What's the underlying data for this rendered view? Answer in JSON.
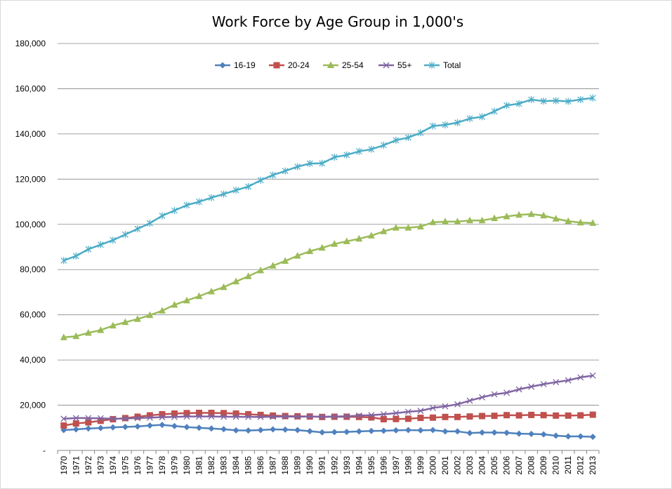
{
  "chart_data": {
    "type": "line",
    "title": "Work Force by Age Group in 1,000's",
    "xlabel": "",
    "ylabel": "",
    "ylim": [
      0,
      180000
    ],
    "y_ticks": [
      0,
      20000,
      40000,
      60000,
      80000,
      100000,
      120000,
      140000,
      160000,
      180000
    ],
    "y_tick_labels": [
      "-",
      "20,000",
      "40,000",
      "60,000",
      "80,000",
      "100,000",
      "120,000",
      "140,000",
      "160,000",
      "180,000"
    ],
    "grid": true,
    "legend_position": "top",
    "categories": [
      "1970",
      "1971",
      "1972",
      "1973",
      "1974",
      "1975",
      "1976",
      "1977",
      "1978",
      "1979",
      "1980",
      "1981",
      "1982",
      "1983",
      "1984",
      "1985",
      "1986",
      "1987",
      "1988",
      "1989",
      "1990",
      "1991",
      "1992",
      "1993",
      "1994",
      "1995",
      "1996",
      "1997",
      "1998",
      "1999",
      "2000",
      "2001",
      "2002",
      "2003",
      "2004",
      "2005",
      "2006",
      "2007",
      "2008",
      "2009",
      "2010",
      "2011",
      "2012",
      "2013"
    ],
    "series": [
      {
        "name": "16-19",
        "color": "#4f81bd",
        "marker": "diamond",
        "values": [
          9000,
          9300,
          9700,
          9900,
          10200,
          10400,
          10600,
          11000,
          11300,
          10800,
          10300,
          10000,
          9700,
          9400,
          8900,
          8800,
          9000,
          9300,
          9200,
          9000,
          8500,
          8000,
          8100,
          8200,
          8400,
          8600,
          8700,
          8900,
          9000,
          8900,
          9000,
          8400,
          8400,
          7700,
          7900,
          7900,
          7800,
          7400,
          7300,
          7100,
          6500,
          6200,
          6200,
          6000
        ]
      },
      {
        "name": "20-24",
        "color": "#c0504d",
        "marker": "square",
        "values": [
          11000,
          11900,
          12400,
          13100,
          13800,
          14300,
          14900,
          15500,
          16000,
          16300,
          16500,
          16600,
          16600,
          16500,
          16300,
          16000,
          15700,
          15400,
          15200,
          15100,
          15000,
          14800,
          14900,
          14900,
          14800,
          14600,
          13800,
          13900,
          14000,
          14400,
          14500,
          14800,
          14800,
          15000,
          15200,
          15300,
          15600,
          15500,
          15700,
          15600,
          15400,
          15400,
          15500,
          15800
        ]
      },
      {
        "name": "25-54",
        "color": "#9bbb59",
        "marker": "triangle",
        "values": [
          50000,
          50500,
          52000,
          53200,
          55200,
          56700,
          58100,
          59800,
          61800,
          64400,
          66300,
          68200,
          70300,
          72200,
          74700,
          77000,
          79600,
          81700,
          83800,
          86100,
          88100,
          89600,
          91300,
          92500,
          93600,
          95000,
          96900,
          98500,
          98500,
          99000,
          100900,
          101200,
          101200,
          101700,
          101700,
          102700,
          103500,
          104200,
          104500,
          103900,
          102500,
          101400,
          100800,
          100600
        ]
      },
      {
        "name": "55+",
        "color": "#8064a2",
        "marker": "x",
        "values": [
          14000,
          14300,
          14300,
          14200,
          14000,
          14100,
          14300,
          14500,
          14700,
          14800,
          15000,
          15000,
          15000,
          14900,
          14900,
          14800,
          14800,
          14900,
          15000,
          14900,
          15000,
          14900,
          15000,
          15100,
          15400,
          15600,
          16000,
          16500,
          17100,
          17500,
          18800,
          19500,
          20400,
          22000,
          23500,
          24800,
          25500,
          27000,
          28200,
          29300,
          30200,
          31000,
          32300,
          33100
        ]
      },
      {
        "name": "Total",
        "color": "#4bacc6",
        "marker": "star",
        "values": [
          84000,
          86000,
          89000,
          91000,
          93000,
          95500,
          98000,
          100500,
          103800,
          106100,
          108500,
          110000,
          111800,
          113400,
          115100,
          116700,
          119500,
          121800,
          123600,
          125500,
          126900,
          127000,
          129700,
          130700,
          132300,
          133200,
          135000,
          137200,
          138400,
          140500,
          143500,
          144000,
          145000,
          146800,
          147600,
          150000,
          152600,
          153400,
          155200,
          154500,
          154700,
          154400,
          155200,
          155900
        ]
      }
    ]
  }
}
